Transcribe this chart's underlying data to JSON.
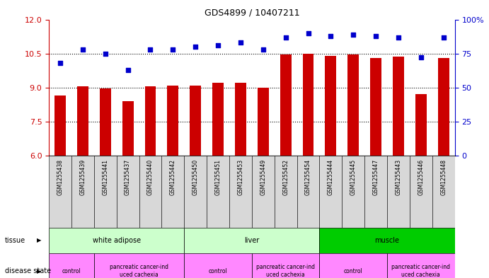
{
  "title": "GDS4899 / 10407211",
  "samples": [
    "GSM1255438",
    "GSM1255439",
    "GSM1255441",
    "GSM1255437",
    "GSM1255440",
    "GSM1255442",
    "GSM1255450",
    "GSM1255451",
    "GSM1255453",
    "GSM1255449",
    "GSM1255452",
    "GSM1255454",
    "GSM1255444",
    "GSM1255445",
    "GSM1255447",
    "GSM1255443",
    "GSM1255446",
    "GSM1255448"
  ],
  "transformed_count": [
    8.65,
    9.05,
    8.95,
    8.4,
    9.05,
    9.1,
    9.1,
    9.2,
    9.2,
    9.0,
    10.45,
    10.5,
    10.4,
    10.45,
    10.3,
    10.35,
    8.7,
    10.3
  ],
  "percentile_rank": [
    68,
    78,
    75,
    63,
    78,
    78,
    80,
    81,
    83,
    78,
    87,
    90,
    88,
    89,
    88,
    87,
    72,
    87
  ],
  "ylim_left": [
    6,
    12
  ],
  "ylim_right": [
    0,
    100
  ],
  "yticks_left": [
    6,
    7.5,
    9,
    10.5,
    12
  ],
  "yticks_right": [
    0,
    25,
    50,
    75,
    100
  ],
  "bar_color": "#cc0000",
  "dot_color": "#0000cc",
  "tissue_groups": [
    {
      "label": "white adipose",
      "start": 0,
      "end": 6,
      "color": "#ccffcc"
    },
    {
      "label": "liver",
      "start": 6,
      "end": 12,
      "color": "#ccffcc"
    },
    {
      "label": "muscle",
      "start": 12,
      "end": 18,
      "color": "#00cc00"
    }
  ],
  "disease_groups": [
    {
      "label": "control",
      "start": 0,
      "end": 2,
      "color": "#ff88ff"
    },
    {
      "label": "pancreatic cancer-ind\nuced cachexia",
      "start": 2,
      "end": 6,
      "color": "#ff88ff"
    },
    {
      "label": "control",
      "start": 6,
      "end": 9,
      "color": "#ff88ff"
    },
    {
      "label": "pancreatic cancer-ind\nuced cachexia",
      "start": 9,
      "end": 12,
      "color": "#ff88ff"
    },
    {
      "label": "control",
      "start": 12,
      "end": 15,
      "color": "#ff88ff"
    },
    {
      "label": "pancreatic cancer-ind\nuced cachexia",
      "start": 15,
      "end": 18,
      "color": "#ff88ff"
    }
  ],
  "background_color": "#ffffff",
  "left_axis_color": "#cc0000",
  "right_axis_color": "#0000cc",
  "gridline_y": [
    7.5,
    9.0,
    10.5
  ],
  "bar_width": 0.5
}
